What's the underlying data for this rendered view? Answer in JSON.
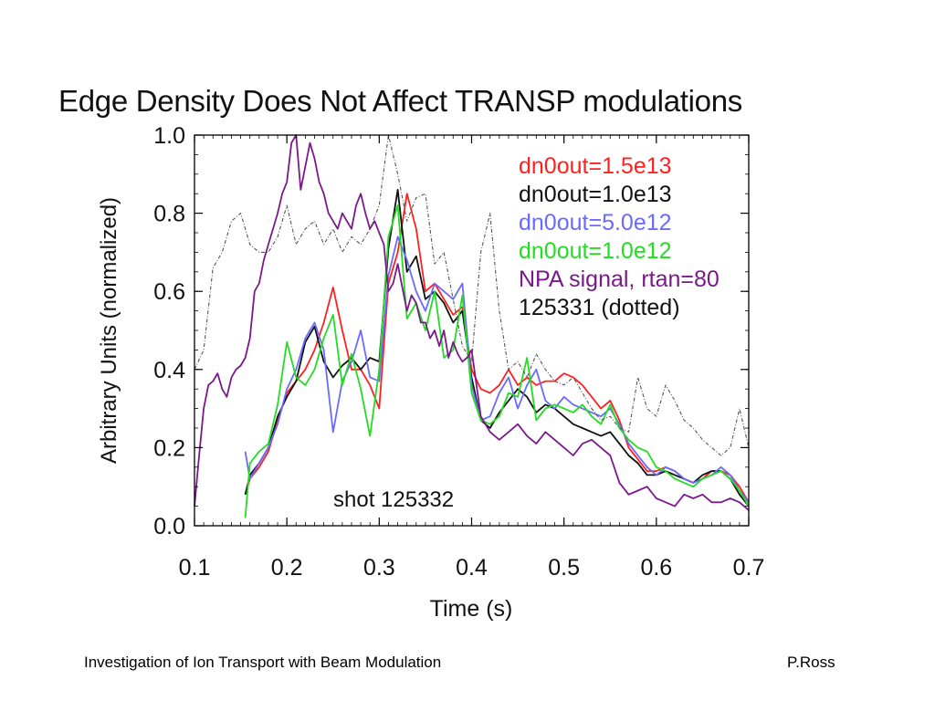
{
  "footer": {
    "left": "Investigation of Ion Transport with Beam Modulation",
    "right": "P.Ross"
  },
  "chart_data": {
    "type": "line",
    "title": "Edge Density Does Not Affect TRANSP modulations",
    "xlabel": "Time (s)",
    "ylabel": "Arbitrary Units (normalized)",
    "xlim": [
      0.1,
      0.7
    ],
    "ylim": [
      0.0,
      1.0
    ],
    "xticks": [
      "0.1",
      "0.2",
      "0.3",
      "0.4",
      "0.5",
      "0.6",
      "0.7"
    ],
    "yticks": [
      "0.0",
      "0.2",
      "0.4",
      "0.6",
      "0.8",
      "1.0"
    ],
    "grid": false,
    "legend_position": "top-right",
    "annotation": "shot 125332",
    "series": [
      {
        "name": "dn0out=1.5e13",
        "color": "#ff2020",
        "dash": "solid",
        "x": [
          0.155,
          0.16,
          0.17,
          0.18,
          0.19,
          0.2,
          0.21,
          0.22,
          0.23,
          0.24,
          0.25,
          0.26,
          0.27,
          0.28,
          0.29,
          0.3,
          0.31,
          0.32,
          0.33,
          0.34,
          0.35,
          0.36,
          0.37,
          0.38,
          0.39,
          0.4,
          0.41,
          0.42,
          0.43,
          0.44,
          0.45,
          0.46,
          0.47,
          0.48,
          0.49,
          0.5,
          0.51,
          0.52,
          0.53,
          0.54,
          0.55,
          0.56,
          0.57,
          0.58,
          0.59,
          0.6,
          0.61,
          0.62,
          0.63,
          0.64,
          0.65,
          0.66,
          0.67,
          0.68,
          0.69,
          0.7
        ],
        "y": [
          0.08,
          0.12,
          0.15,
          0.19,
          0.27,
          0.34,
          0.37,
          0.4,
          0.45,
          0.52,
          0.61,
          0.5,
          0.4,
          0.4,
          0.36,
          0.3,
          0.62,
          0.7,
          0.85,
          0.76,
          0.6,
          0.62,
          0.58,
          0.54,
          0.56,
          0.4,
          0.35,
          0.34,
          0.36,
          0.4,
          0.36,
          0.38,
          0.36,
          0.37,
          0.37,
          0.39,
          0.38,
          0.36,
          0.33,
          0.3,
          0.32,
          0.27,
          0.2,
          0.17,
          0.14,
          0.14,
          0.15,
          0.14,
          0.12,
          0.11,
          0.12,
          0.14,
          0.14,
          0.13,
          0.1,
          0.06
        ]
      },
      {
        "name": "dn0out=1.0e13",
        "color": "#111111",
        "dash": "solid",
        "x": [
          0.155,
          0.16,
          0.17,
          0.18,
          0.19,
          0.2,
          0.21,
          0.22,
          0.23,
          0.24,
          0.25,
          0.26,
          0.27,
          0.28,
          0.29,
          0.3,
          0.31,
          0.32,
          0.33,
          0.34,
          0.35,
          0.36,
          0.37,
          0.38,
          0.39,
          0.4,
          0.41,
          0.42,
          0.43,
          0.44,
          0.45,
          0.46,
          0.47,
          0.48,
          0.49,
          0.5,
          0.51,
          0.52,
          0.53,
          0.54,
          0.55,
          0.56,
          0.57,
          0.58,
          0.59,
          0.6,
          0.61,
          0.62,
          0.63,
          0.64,
          0.65,
          0.66,
          0.67,
          0.68,
          0.69,
          0.7
        ],
        "y": [
          0.08,
          0.13,
          0.16,
          0.2,
          0.28,
          0.33,
          0.37,
          0.47,
          0.51,
          0.42,
          0.38,
          0.41,
          0.43,
          0.4,
          0.43,
          0.42,
          0.71,
          0.86,
          0.65,
          0.69,
          0.58,
          0.6,
          0.57,
          0.52,
          0.55,
          0.38,
          0.27,
          0.25,
          0.29,
          0.32,
          0.35,
          0.33,
          0.29,
          0.31,
          0.3,
          0.28,
          0.26,
          0.25,
          0.24,
          0.23,
          0.24,
          0.21,
          0.18,
          0.16,
          0.13,
          0.13,
          0.14,
          0.13,
          0.12,
          0.11,
          0.13,
          0.14,
          0.14,
          0.12,
          0.08,
          0.05
        ]
      },
      {
        "name": "dn0out=5.0e12",
        "color": "#6a6aff",
        "dash": "solid",
        "x": [
          0.155,
          0.16,
          0.17,
          0.18,
          0.19,
          0.2,
          0.21,
          0.22,
          0.23,
          0.24,
          0.25,
          0.26,
          0.27,
          0.28,
          0.29,
          0.3,
          0.31,
          0.32,
          0.33,
          0.34,
          0.35,
          0.36,
          0.37,
          0.38,
          0.39,
          0.4,
          0.41,
          0.42,
          0.43,
          0.44,
          0.45,
          0.46,
          0.47,
          0.48,
          0.49,
          0.5,
          0.51,
          0.52,
          0.53,
          0.54,
          0.55,
          0.56,
          0.57,
          0.58,
          0.59,
          0.6,
          0.61,
          0.62,
          0.63,
          0.64,
          0.65,
          0.66,
          0.67,
          0.68,
          0.69,
          0.7
        ],
        "y": [
          0.19,
          0.12,
          0.16,
          0.2,
          0.26,
          0.35,
          0.4,
          0.48,
          0.52,
          0.45,
          0.24,
          0.37,
          0.42,
          0.5,
          0.38,
          0.37,
          0.64,
          0.74,
          0.68,
          0.6,
          0.55,
          0.62,
          0.6,
          0.58,
          0.62,
          0.36,
          0.27,
          0.28,
          0.34,
          0.38,
          0.3,
          0.36,
          0.4,
          0.32,
          0.3,
          0.33,
          0.31,
          0.3,
          0.29,
          0.28,
          0.3,
          0.26,
          0.21,
          0.18,
          0.15,
          0.13,
          0.15,
          0.14,
          0.12,
          0.11,
          0.12,
          0.13,
          0.15,
          0.13,
          0.09,
          0.06
        ]
      },
      {
        "name": "dn0out=1.0e12",
        "color": "#22dd22",
        "dash": "solid",
        "x": [
          0.155,
          0.16,
          0.17,
          0.18,
          0.19,
          0.2,
          0.21,
          0.22,
          0.23,
          0.24,
          0.25,
          0.26,
          0.27,
          0.28,
          0.29,
          0.3,
          0.31,
          0.32,
          0.33,
          0.34,
          0.35,
          0.36,
          0.37,
          0.38,
          0.39,
          0.4,
          0.41,
          0.42,
          0.43,
          0.44,
          0.45,
          0.46,
          0.47,
          0.48,
          0.49,
          0.5,
          0.51,
          0.52,
          0.53,
          0.54,
          0.55,
          0.56,
          0.57,
          0.58,
          0.59,
          0.6,
          0.61,
          0.62,
          0.63,
          0.64,
          0.65,
          0.66,
          0.67,
          0.68,
          0.69,
          0.7
        ],
        "y": [
          0.02,
          0.16,
          0.19,
          0.21,
          0.31,
          0.47,
          0.38,
          0.36,
          0.4,
          0.48,
          0.54,
          0.36,
          0.44,
          0.35,
          0.23,
          0.4,
          0.74,
          0.82,
          0.53,
          0.57,
          0.5,
          0.6,
          0.43,
          0.45,
          0.59,
          0.34,
          0.27,
          0.26,
          0.28,
          0.34,
          0.33,
          0.43,
          0.27,
          0.3,
          0.31,
          0.3,
          0.29,
          0.31,
          0.28,
          0.26,
          0.31,
          0.25,
          0.22,
          0.2,
          0.19,
          0.15,
          0.14,
          0.12,
          0.11,
          0.1,
          0.12,
          0.13,
          0.14,
          0.12,
          0.09,
          0.05
        ]
      },
      {
        "name": "NPA signal, rtan=80",
        "color": "#7a1a8a",
        "dash": "solid",
        "x": [
          0.1,
          0.105,
          0.11,
          0.115,
          0.12,
          0.125,
          0.13,
          0.135,
          0.14,
          0.145,
          0.15,
          0.155,
          0.16,
          0.165,
          0.17,
          0.175,
          0.18,
          0.185,
          0.19,
          0.195,
          0.2,
          0.205,
          0.21,
          0.215,
          0.22,
          0.225,
          0.23,
          0.235,
          0.24,
          0.245,
          0.25,
          0.255,
          0.26,
          0.265,
          0.27,
          0.275,
          0.28,
          0.285,
          0.29,
          0.295,
          0.3,
          0.305,
          0.31,
          0.315,
          0.32,
          0.325,
          0.33,
          0.335,
          0.34,
          0.345,
          0.35,
          0.355,
          0.36,
          0.365,
          0.37,
          0.375,
          0.38,
          0.385,
          0.39,
          0.395,
          0.4,
          0.41,
          0.42,
          0.43,
          0.44,
          0.45,
          0.46,
          0.47,
          0.48,
          0.49,
          0.5,
          0.51,
          0.52,
          0.53,
          0.54,
          0.55,
          0.56,
          0.57,
          0.58,
          0.59,
          0.6,
          0.61,
          0.62,
          0.63,
          0.64,
          0.65,
          0.66,
          0.67,
          0.68,
          0.69,
          0.7
        ],
        "y": [
          0.05,
          0.18,
          0.3,
          0.36,
          0.37,
          0.39,
          0.35,
          0.33,
          0.38,
          0.4,
          0.41,
          0.43,
          0.48,
          0.6,
          0.62,
          0.68,
          0.72,
          0.76,
          0.8,
          0.85,
          0.88,
          0.98,
          1.0,
          0.86,
          0.92,
          0.98,
          0.94,
          0.88,
          0.85,
          0.8,
          0.78,
          0.76,
          0.8,
          0.78,
          0.76,
          0.82,
          0.85,
          0.8,
          0.76,
          0.78,
          0.75,
          0.72,
          0.6,
          0.62,
          0.67,
          0.61,
          0.55,
          0.59,
          0.57,
          0.52,
          0.52,
          0.48,
          0.5,
          0.46,
          0.5,
          0.43,
          0.47,
          0.44,
          0.42,
          0.43,
          0.45,
          0.28,
          0.24,
          0.22,
          0.24,
          0.26,
          0.23,
          0.21,
          0.24,
          0.22,
          0.2,
          0.18,
          0.21,
          0.22,
          0.2,
          0.18,
          0.11,
          0.08,
          0.09,
          0.1,
          0.07,
          0.06,
          0.05,
          0.08,
          0.07,
          0.08,
          0.06,
          0.06,
          0.07,
          0.06,
          0.04
        ]
      },
      {
        "name": "125331 (dotted)",
        "color": "#555555",
        "dash": "dotted",
        "x": [
          0.1,
          0.11,
          0.12,
          0.13,
          0.14,
          0.15,
          0.16,
          0.17,
          0.18,
          0.19,
          0.2,
          0.21,
          0.22,
          0.23,
          0.24,
          0.25,
          0.26,
          0.27,
          0.28,
          0.29,
          0.3,
          0.31,
          0.32,
          0.33,
          0.34,
          0.35,
          0.36,
          0.37,
          0.38,
          0.39,
          0.4,
          0.41,
          0.42,
          0.43,
          0.44,
          0.45,
          0.46,
          0.47,
          0.48,
          0.49,
          0.5,
          0.51,
          0.52,
          0.53,
          0.54,
          0.55,
          0.56,
          0.57,
          0.58,
          0.59,
          0.6,
          0.61,
          0.62,
          0.63,
          0.64,
          0.65,
          0.66,
          0.67,
          0.68,
          0.69,
          0.7
        ],
        "y": [
          0.4,
          0.45,
          0.66,
          0.7,
          0.78,
          0.8,
          0.72,
          0.7,
          0.7,
          0.74,
          0.82,
          0.72,
          0.76,
          0.78,
          0.72,
          0.76,
          0.7,
          0.74,
          0.72,
          0.76,
          0.82,
          1.0,
          0.9,
          0.78,
          0.84,
          0.85,
          0.67,
          0.7,
          0.58,
          0.46,
          0.42,
          0.7,
          0.8,
          0.55,
          0.4,
          0.42,
          0.38,
          0.44,
          0.4,
          0.37,
          0.36,
          0.38,
          0.34,
          0.3,
          0.27,
          0.28,
          0.25,
          0.24,
          0.38,
          0.3,
          0.28,
          0.36,
          0.32,
          0.27,
          0.25,
          0.22,
          0.2,
          0.18,
          0.2,
          0.3,
          0.2
        ]
      }
    ]
  }
}
